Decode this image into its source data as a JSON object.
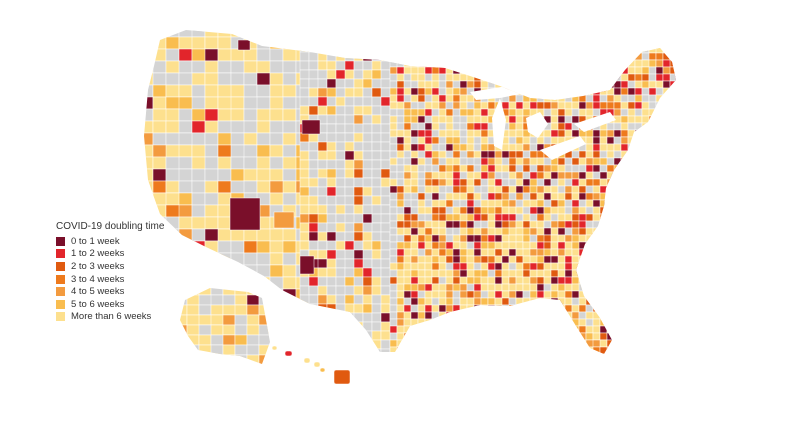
{
  "legend": {
    "title": "COVID-19 doubling time",
    "items": [
      {
        "label": "0 to 1 week",
        "color": "#7a0f2a"
      },
      {
        "label": "1 to 2 weeks",
        "color": "#e2252b"
      },
      {
        "label": "2 to 3 weeks",
        "color": "#e05a10"
      },
      {
        "label": "3 to 4 weeks",
        "color": "#ee7a1d"
      },
      {
        "label": "4 to 5 weeks",
        "color": "#f39b3f"
      },
      {
        "label": "5 to 6 weeks",
        "color": "#f9bd4f"
      },
      {
        "label": "More than 6 weeks",
        "color": "#fde08e"
      }
    ]
  },
  "colors": {
    "no_data": "#d4d4d4",
    "border": "#ffffff",
    "background": "#ffffff"
  }
}
